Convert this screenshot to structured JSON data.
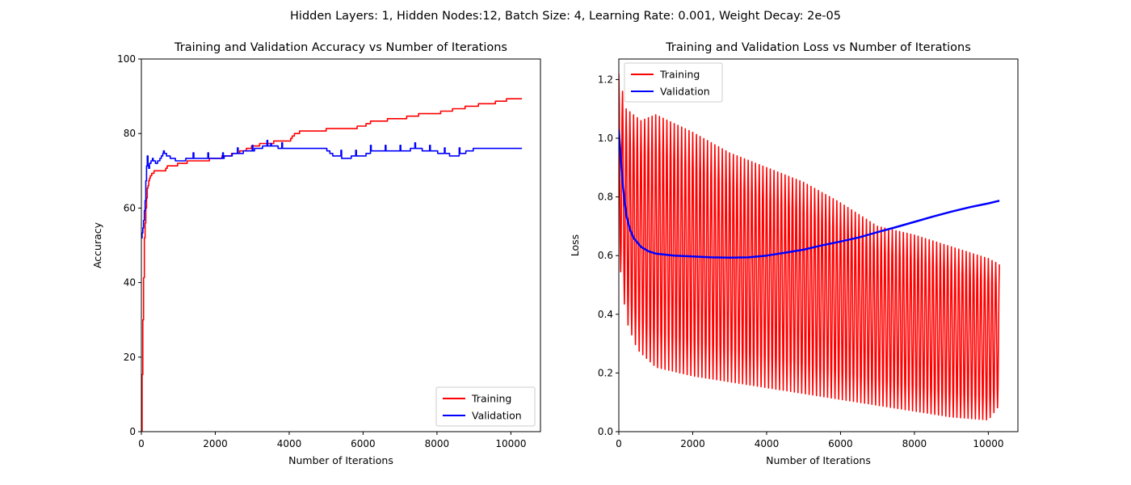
{
  "figure": {
    "suptitle": "Hidden Layers: 1, Hidden Nodes:12, Batch Size: 4, Learning Rate: 0.001, Weight Decay: 2e-05"
  },
  "chart_data": [
    {
      "type": "line",
      "title": "Training and Validation Accuracy vs Number of Iterations",
      "xlabel": "Number of Iterations",
      "ylabel": "Accuracy",
      "xlim": [
        0,
        10800
      ],
      "ylim": [
        0,
        100
      ],
      "xticks": [
        0,
        2000,
        4000,
        6000,
        8000,
        10000
      ],
      "yticks": [
        0,
        20,
        40,
        60,
        80,
        100
      ],
      "legend": "lower-right",
      "grid": false,
      "series": [
        {
          "name": "Training",
          "color": "#ff0000",
          "points": [
            [
              0,
              0
            ],
            [
              40,
              30
            ],
            [
              80,
              52
            ],
            [
              120,
              60
            ],
            [
              160,
              65
            ],
            [
              220,
              68
            ],
            [
              300,
              69.5
            ],
            [
              400,
              70
            ],
            [
              500,
              70
            ],
            [
              600,
              69.8
            ],
            [
              700,
              71
            ],
            [
              800,
              71.3
            ],
            [
              900,
              71
            ],
            [
              1000,
              72
            ],
            [
              1200,
              72.3
            ],
            [
              1500,
              72.6
            ],
            [
              2000,
              73.2
            ],
            [
              2500,
              74.5
            ],
            [
              2800,
              75.5
            ],
            [
              3000,
              76.5
            ],
            [
              3400,
              77.5
            ],
            [
              3600,
              77.7
            ],
            [
              3700,
              78
            ],
            [
              4000,
              78
            ],
            [
              4100,
              79.5
            ],
            [
              4300,
              80.5
            ],
            [
              4500,
              80.8
            ],
            [
              4700,
              80.6
            ],
            [
              5000,
              81
            ],
            [
              5500,
              81
            ],
            [
              6000,
              82
            ],
            [
              6200,
              83
            ],
            [
              6500,
              83.3
            ],
            [
              6800,
              84
            ],
            [
              7000,
              84
            ],
            [
              7500,
              85
            ],
            [
              8000,
              85.5
            ],
            [
              8500,
              86.5
            ],
            [
              9000,
              87.5
            ],
            [
              9500,
              88.2
            ],
            [
              10000,
              89.3
            ],
            [
              10300,
              89.3
            ]
          ]
        },
        {
          "name": "Validation",
          "color": "#0000ff",
          "points": [
            [
              0,
              52
            ],
            [
              50,
              55
            ],
            [
              100,
              62
            ],
            [
              130,
              70
            ],
            [
              160,
              74
            ],
            [
              190,
              70
            ],
            [
              220,
              72
            ],
            [
              300,
              73
            ],
            [
              400,
              72
            ],
            [
              500,
              73
            ],
            [
              600,
              75
            ],
            [
              700,
              74
            ],
            [
              800,
              73.5
            ],
            [
              900,
              73
            ],
            [
              1000,
              72.5
            ],
            [
              1200,
              73
            ],
            [
              1500,
              73
            ],
            [
              2000,
              73
            ],
            [
              2500,
              74.5
            ],
            [
              3000,
              75.5
            ],
            [
              3500,
              77
            ],
            [
              3600,
              76.5
            ],
            [
              4000,
              75.8
            ],
            [
              4500,
              75.8
            ],
            [
              5000,
              75.8
            ],
            [
              5200,
              74
            ],
            [
              5500,
              73.5
            ],
            [
              6000,
              74
            ],
            [
              6200,
              75
            ],
            [
              7000,
              75.5
            ],
            [
              7500,
              75.8
            ],
            [
              8000,
              75
            ],
            [
              8500,
              74
            ],
            [
              9000,
              75.8
            ],
            [
              9500,
              75.8
            ],
            [
              10300,
              75.8
            ]
          ]
        }
      ]
    },
    {
      "type": "line",
      "title": "Training and Validation Loss vs Number of Iterations",
      "xlabel": "Number of Iterations",
      "ylabel": "Loss",
      "xlim": [
        0,
        10800
      ],
      "ylim": [
        0,
        1.27
      ],
      "xticks": [
        0,
        2000,
        4000,
        6000,
        8000,
        10000
      ],
      "yticks": [
        0.0,
        0.2,
        0.4,
        0.6,
        0.8,
        1.0,
        1.2
      ],
      "legend": "upper-left",
      "grid": false,
      "series": [
        {
          "name": "Training",
          "color": "#ff0000",
          "period": 100,
          "upper_envelope": [
            [
              0,
              1.22
            ],
            [
              200,
              1.1
            ],
            [
              600,
              1.06
            ],
            [
              1000,
              1.08
            ],
            [
              1500,
              1.05
            ],
            [
              2000,
              1.02
            ],
            [
              3000,
              0.95
            ],
            [
              4000,
              0.9
            ],
            [
              5000,
              0.85
            ],
            [
              6000,
              0.78
            ],
            [
              7000,
              0.7
            ],
            [
              8000,
              0.67
            ],
            [
              9000,
              0.63
            ],
            [
              10000,
              0.59
            ],
            [
              10300,
              0.57
            ]
          ],
          "lower_envelope": [
            [
              0,
              0.6
            ],
            [
              200,
              0.38
            ],
            [
              500,
              0.28
            ],
            [
              1000,
              0.22
            ],
            [
              2000,
              0.19
            ],
            [
              3000,
              0.17
            ],
            [
              4000,
              0.15
            ],
            [
              5000,
              0.13
            ],
            [
              6000,
              0.11
            ],
            [
              7000,
              0.09
            ],
            [
              8000,
              0.07
            ],
            [
              9000,
              0.05
            ],
            [
              10000,
              0.04
            ],
            [
              10300,
              0.09
            ]
          ]
        },
        {
          "name": "Validation",
          "color": "#0000ff",
          "points": [
            [
              0,
              1.03
            ],
            [
              100,
              0.85
            ],
            [
              200,
              0.74
            ],
            [
              300,
              0.69
            ],
            [
              400,
              0.66
            ],
            [
              600,
              0.63
            ],
            [
              800,
              0.615
            ],
            [
              1000,
              0.607
            ],
            [
              1500,
              0.6
            ],
            [
              2000,
              0.597
            ],
            [
              2500,
              0.594
            ],
            [
              3000,
              0.593
            ],
            [
              3500,
              0.594
            ],
            [
              4000,
              0.6
            ],
            [
              4500,
              0.61
            ],
            [
              5000,
              0.62
            ],
            [
              5500,
              0.635
            ],
            [
              6000,
              0.648
            ],
            [
              6500,
              0.662
            ],
            [
              7000,
              0.68
            ],
            [
              7500,
              0.697
            ],
            [
              8000,
              0.715
            ],
            [
              8500,
              0.733
            ],
            [
              9000,
              0.75
            ],
            [
              9500,
              0.765
            ],
            [
              10000,
              0.778
            ],
            [
              10300,
              0.787
            ]
          ]
        }
      ]
    }
  ]
}
